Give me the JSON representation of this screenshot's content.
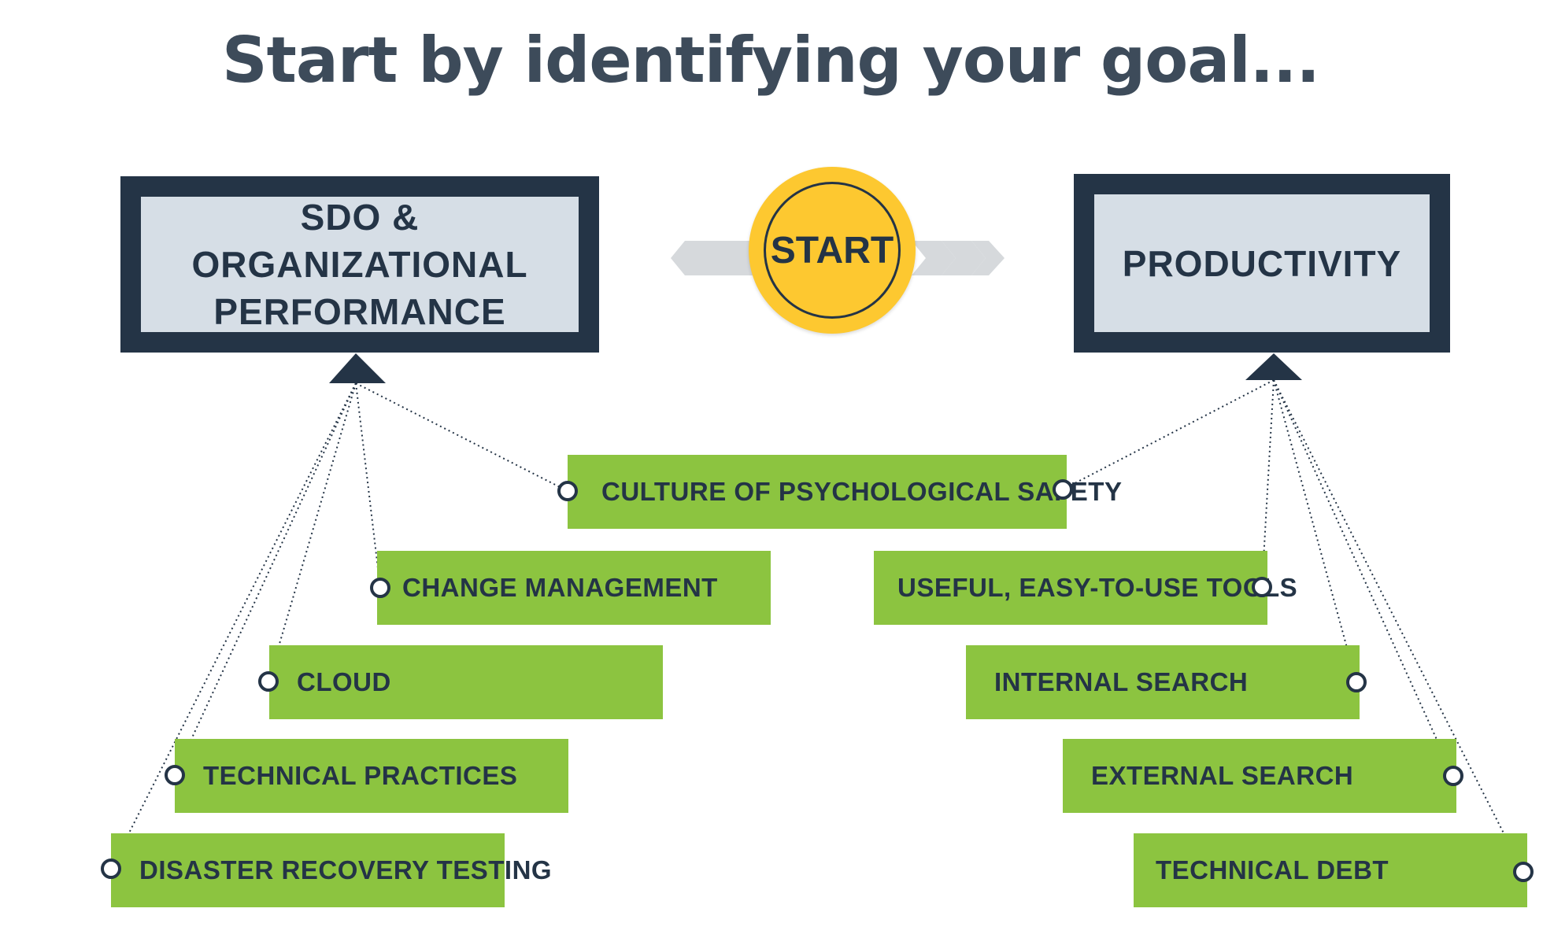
{
  "title": "Start by identifying your goal...",
  "start_label": "START",
  "goals": {
    "left": {
      "line1": "SDO & ORGANIZATIONAL",
      "line2": "PERFORMANCE"
    },
    "right": {
      "label": "PRODUCTIVITY"
    }
  },
  "factors": {
    "culture": "CULTURE OF PSYCHOLOGICAL SAFETY",
    "change_management": "CHANGE MANAGEMENT",
    "cloud": "CLOUD",
    "technical_practices": "TECHNICAL PRACTICES",
    "disaster_recovery": "DISASTER RECOVERY TESTING",
    "useful_tools": "USEFUL, EASY-TO-USE TOOLS",
    "internal_search": "INTERNAL SEARCH",
    "external_search": "EXTERNAL SEARCH",
    "technical_debt": "TECHNICAL DEBT"
  },
  "colors": {
    "navy": "#243446",
    "title": "#3d4b5a",
    "goal_fill": "#d6dee6",
    "factor_green": "#8cc440",
    "start_yellow": "#fdc830",
    "chevron_gray": "#d6d9dc"
  }
}
